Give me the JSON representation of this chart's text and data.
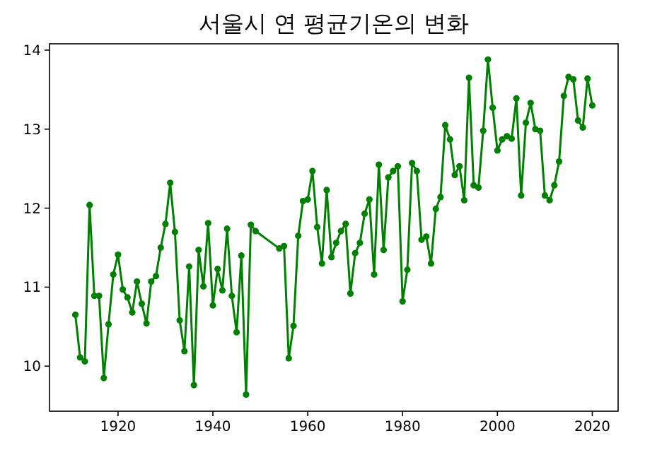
{
  "chart_data": {
    "type": "line",
    "title": "서울시 연 평균기온의 변화",
    "x": [
      1911,
      1912,
      1913,
      1914,
      1915,
      1916,
      1917,
      1918,
      1919,
      1920,
      1921,
      1922,
      1923,
      1924,
      1925,
      1926,
      1927,
      1928,
      1929,
      1930,
      1931,
      1932,
      1933,
      1934,
      1935,
      1936,
      1937,
      1938,
      1939,
      1940,
      1941,
      1942,
      1943,
      1944,
      1945,
      1946,
      1947,
      1948,
      1949,
      1954,
      1955,
      1956,
      1957,
      1958,
      1959,
      1960,
      1961,
      1962,
      1963,
      1964,
      1965,
      1966,
      1967,
      1968,
      1969,
      1970,
      1971,
      1972,
      1973,
      1974,
      1975,
      1976,
      1977,
      1978,
      1979,
      1980,
      1981,
      1982,
      1983,
      1984,
      1985,
      1986,
      1987,
      1988,
      1989,
      1990,
      1991,
      1992,
      1993,
      1994,
      1995,
      1996,
      1997,
      1998,
      1999,
      2000,
      2001,
      2002,
      2003,
      2004,
      2005,
      2006,
      2007,
      2008,
      2009,
      2010,
      2011,
      2012,
      2013,
      2014,
      2015,
      2016,
      2017,
      2018,
      2019,
      2020
    ],
    "series": [
      {
        "color": "#008000",
        "values": [
          10.65,
          10.11,
          10.06,
          12.04,
          10.89,
          10.89,
          9.85,
          10.53,
          11.16,
          11.41,
          10.97,
          10.87,
          10.68,
          11.07,
          10.79,
          10.54,
          11.07,
          11.14,
          11.5,
          11.8,
          12.32,
          11.7,
          10.58,
          10.19,
          11.26,
          9.76,
          11.47,
          11.01,
          11.81,
          10.77,
          11.23,
          10.96,
          11.74,
          10.89,
          10.43,
          11.4,
          9.64,
          11.79,
          11.71,
          11.49,
          11.52,
          10.1,
          10.51,
          11.65,
          12.09,
          12.11,
          12.47,
          11.76,
          11.3,
          12.23,
          11.38,
          11.56,
          11.71,
          11.8,
          10.92,
          11.43,
          11.56,
          11.93,
          12.11,
          11.16,
          12.55,
          11.47,
          12.39,
          12.47,
          12.53,
          10.82,
          11.22,
          12.57,
          12.47,
          11.6,
          11.64,
          11.3,
          11.99,
          12.14,
          13.05,
          12.87,
          12.42,
          12.53,
          12.1,
          13.65,
          12.29,
          12.26,
          12.98,
          13.88,
          13.27,
          12.73,
          12.87,
          12.91,
          12.88,
          13.39,
          12.16,
          13.08,
          13.33,
          13.0,
          12.98,
          12.16,
          12.1,
          12.29,
          12.59,
          13.42,
          13.66,
          13.63,
          13.11,
          13.02,
          13.64,
          13.3
        ]
      }
    ],
    "xlim": [
      1905.55,
      2025.45
    ],
    "ylim": [
      9.43,
      14.08
    ],
    "xticks": [
      1920,
      1940,
      1960,
      1980,
      2000,
      2020
    ],
    "yticks": [
      10,
      11,
      12,
      13,
      14
    ],
    "marker": "circle",
    "line_style": "solid",
    "grid": false
  }
}
